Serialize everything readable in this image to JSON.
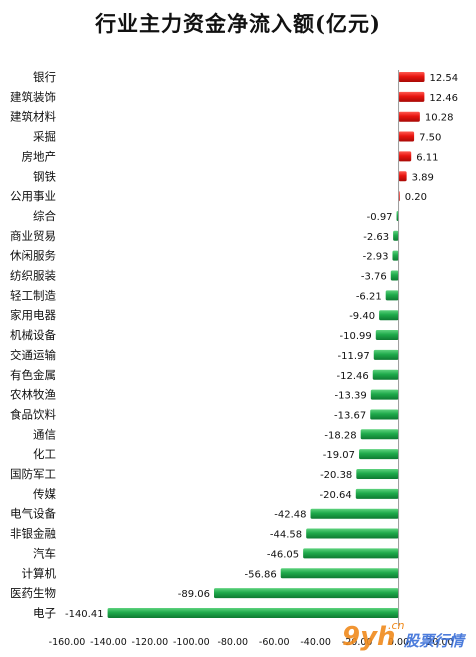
{
  "chart_data": {
    "type": "bar",
    "orientation": "horizontal",
    "title": "行业主力资金净流入额(亿元)",
    "categories": [
      "银行",
      "建筑装饰",
      "建筑材料",
      "采掘",
      "房地产",
      "钢铁",
      "公用事业",
      "综合",
      "商业贸易",
      "休闲服务",
      "纺织服装",
      "轻工制造",
      "家用电器",
      "机械设备",
      "交通运输",
      "有色金属",
      "农林牧渔",
      "食品饮料",
      "通信",
      "化工",
      "国防军工",
      "传媒",
      "电气设备",
      "非银金融",
      "汽车",
      "计算机",
      "医药生物",
      "电子"
    ],
    "values": [
      12.54,
      12.46,
      10.28,
      7.5,
      6.11,
      3.89,
      0.2,
      -0.97,
      -2.63,
      -2.93,
      -3.76,
      -6.21,
      -9.4,
      -10.99,
      -11.97,
      -12.46,
      -13.39,
      -13.67,
      -18.28,
      -19.07,
      -20.38,
      -20.64,
      -42.48,
      -44.58,
      -46.05,
      -56.86,
      -89.06,
      -140.41
    ],
    "value_labels": [
      "12.54",
      "12.46",
      "10.28",
      "7.50",
      "6.11",
      "3.89",
      "0.20",
      "-0.97",
      "-2.63",
      "-2.93",
      "-3.76",
      "-6.21",
      "-9.40",
      "-10.99",
      "-11.97",
      "-12.46",
      "-13.39",
      "-13.67",
      "-18.28",
      "-19.07",
      "-20.38",
      "-20.64",
      "-42.48",
      "-44.58",
      "-46.05",
      "-56.86",
      "-89.06",
      "-140.41"
    ],
    "xlim": [
      -160,
      20
    ],
    "xticks": [
      -160,
      -140,
      -120,
      -100,
      -80,
      -60,
      -40,
      -20,
      0,
      20
    ],
    "xtick_labels": [
      "-160.00",
      "-140.00",
      "-120.00",
      "-100.00",
      "-80.00",
      "-60.00",
      "-40.00",
      "-20.00",
      "0.00",
      "20.00"
    ],
    "positive_color": "#e8140f",
    "negative_color": "#1faa4b",
    "grid": false,
    "legend": "none"
  },
  "watermark": {
    "logo_text": "9yh",
    "domain_text": ".cn",
    "brand_text": "股票行情"
  }
}
